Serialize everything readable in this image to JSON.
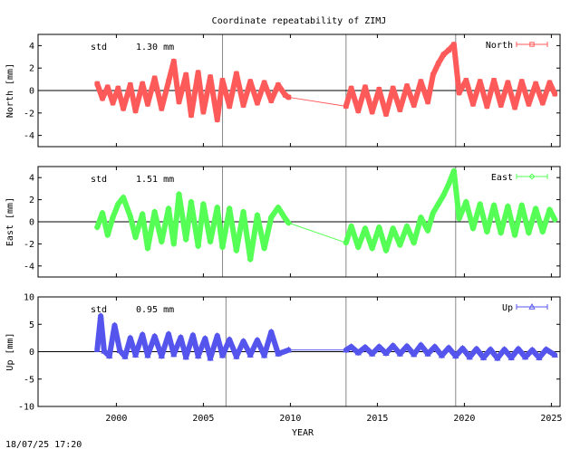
{
  "title": "Coordinate repeatability of ZIMJ",
  "xlabel": "YEAR",
  "timestamp": "18/07/25 17:20",
  "x_ticks": [
    "2000",
    "2005",
    "2010",
    "2015",
    "2020",
    "2025"
  ],
  "chart_data": [
    {
      "type": "line",
      "name": "north",
      "legend": "North",
      "ylabel": "North [mm]",
      "std_label": "std",
      "std_value": "1.30 mm",
      "ylim": [
        -5,
        5
      ],
      "y_ticks": [
        "4",
        "2",
        "0",
        "-2",
        "-4"
      ],
      "xlim": [
        1995.5,
        2025.5
      ],
      "color": "#ff5a5a",
      "marker": "square",
      "vertical_lines": [
        2006.1,
        2013.2,
        2019.5
      ],
      "gaps": [
        [
          2009.9,
          2013.2
        ]
      ],
      "segments": [
        {
          "x": 1998.9,
          "y": 0.6
        },
        {
          "x": 1999.2,
          "y": -0.7
        },
        {
          "x": 1999.5,
          "y": 0.3
        },
        {
          "x": 1999.8,
          "y": -1.1
        },
        {
          "x": 2000.1,
          "y": 0.2
        },
        {
          "x": 2000.4,
          "y": -1.6
        },
        {
          "x": 2000.8,
          "y": 0.5
        },
        {
          "x": 2001.1,
          "y": -1.8
        },
        {
          "x": 2001.5,
          "y": 0.6
        },
        {
          "x": 2001.8,
          "y": -1.2
        },
        {
          "x": 2002.2,
          "y": 1.1
        },
        {
          "x": 2002.6,
          "y": -1.6
        },
        {
          "x": 2003.0,
          "y": 0.8
        },
        {
          "x": 2003.3,
          "y": 2.6
        },
        {
          "x": 2003.6,
          "y": -1.0
        },
        {
          "x": 2004.0,
          "y": 1.4
        },
        {
          "x": 2004.3,
          "y": -2.2
        },
        {
          "x": 2004.7,
          "y": 1.6
        },
        {
          "x": 2005.0,
          "y": -1.9
        },
        {
          "x": 2005.4,
          "y": 1.2
        },
        {
          "x": 2005.8,
          "y": -2.6
        },
        {
          "x": 2006.1,
          "y": 0.9
        },
        {
          "x": 2006.5,
          "y": -1.4
        },
        {
          "x": 2006.9,
          "y": 1.5
        },
        {
          "x": 2007.3,
          "y": -1.3
        },
        {
          "x": 2007.7,
          "y": 0.8
        },
        {
          "x": 2008.1,
          "y": -1.1
        },
        {
          "x": 2008.5,
          "y": 0.7
        },
        {
          "x": 2008.9,
          "y": -0.9
        },
        {
          "x": 2009.3,
          "y": 0.5
        },
        {
          "x": 2009.7,
          "y": -0.4
        },
        {
          "x": 2009.9,
          "y": -0.6
        },
        {
          "x": 2013.2,
          "y": -1.4
        },
        {
          "x": 2013.5,
          "y": 0.2
        },
        {
          "x": 2013.9,
          "y": -1.8
        },
        {
          "x": 2014.3,
          "y": 0.3
        },
        {
          "x": 2014.7,
          "y": -1.9
        },
        {
          "x": 2015.1,
          "y": 0.1
        },
        {
          "x": 2015.5,
          "y": -2.1
        },
        {
          "x": 2015.9,
          "y": 0.2
        },
        {
          "x": 2016.3,
          "y": -1.7
        },
        {
          "x": 2016.7,
          "y": 0.4
        },
        {
          "x": 2017.1,
          "y": -1.3
        },
        {
          "x": 2017.5,
          "y": 0.8
        },
        {
          "x": 2017.9,
          "y": -1.0
        },
        {
          "x": 2018.2,
          "y": 1.4
        },
        {
          "x": 2018.5,
          "y": 2.4
        },
        {
          "x": 2018.8,
          "y": 3.2
        },
        {
          "x": 2019.1,
          "y": 3.6
        },
        {
          "x": 2019.4,
          "y": 4.1
        },
        {
          "x": 2019.7,
          "y": -0.2
        },
        {
          "x": 2020.1,
          "y": 0.9
        },
        {
          "x": 2020.5,
          "y": -1.2
        },
        {
          "x": 2020.9,
          "y": 0.8
        },
        {
          "x": 2021.3,
          "y": -1.4
        },
        {
          "x": 2021.7,
          "y": 0.9
        },
        {
          "x": 2022.1,
          "y": -1.3
        },
        {
          "x": 2022.5,
          "y": 0.7
        },
        {
          "x": 2022.9,
          "y": -1.5
        },
        {
          "x": 2023.3,
          "y": 0.8
        },
        {
          "x": 2023.7,
          "y": -1.2
        },
        {
          "x": 2024.1,
          "y": 0.6
        },
        {
          "x": 2024.5,
          "y": -1.1
        },
        {
          "x": 2024.9,
          "y": 0.7
        },
        {
          "x": 2025.2,
          "y": -0.3
        }
      ]
    },
    {
      "type": "line",
      "name": "east",
      "legend": "East",
      "ylabel": "East [mm]",
      "std_label": "std",
      "std_value": "1.51 mm",
      "ylim": [
        -5,
        5
      ],
      "y_ticks": [
        "4",
        "2",
        "0",
        "-2",
        "-4"
      ],
      "xlim": [
        1995.5,
        2025.5
      ],
      "color": "#55ff55",
      "marker": "diamond",
      "vertical_lines": [
        2006.1,
        2013.2,
        2019.5
      ],
      "gaps": [
        [
          2009.9,
          2013.2
        ]
      ],
      "segments": [
        {
          "x": 1998.9,
          "y": -0.5
        },
        {
          "x": 1999.2,
          "y": 0.8
        },
        {
          "x": 1999.5,
          "y": -1.2
        },
        {
          "x": 1999.8,
          "y": 0.4
        },
        {
          "x": 2000.1,
          "y": 1.6
        },
        {
          "x": 2000.4,
          "y": 2.2
        },
        {
          "x": 2000.8,
          "y": 0.5
        },
        {
          "x": 2001.1,
          "y": -1.4
        },
        {
          "x": 2001.5,
          "y": 0.7
        },
        {
          "x": 2001.8,
          "y": -2.4
        },
        {
          "x": 2002.2,
          "y": 0.9
        },
        {
          "x": 2002.6,
          "y": -1.8
        },
        {
          "x": 2003.0,
          "y": 1.2
        },
        {
          "x": 2003.3,
          "y": -2.0
        },
        {
          "x": 2003.6,
          "y": 2.5
        },
        {
          "x": 2004.0,
          "y": -1.6
        },
        {
          "x": 2004.3,
          "y": 1.8
        },
        {
          "x": 2004.7,
          "y": -2.2
        },
        {
          "x": 2005.0,
          "y": 1.6
        },
        {
          "x": 2005.4,
          "y": -1.8
        },
        {
          "x": 2005.8,
          "y": 1.3
        },
        {
          "x": 2006.1,
          "y": -2.3
        },
        {
          "x": 2006.5,
          "y": 1.2
        },
        {
          "x": 2006.9,
          "y": -2.6
        },
        {
          "x": 2007.3,
          "y": 0.9
        },
        {
          "x": 2007.7,
          "y": -3.4
        },
        {
          "x": 2008.1,
          "y": 0.6
        },
        {
          "x": 2008.5,
          "y": -2.4
        },
        {
          "x": 2008.9,
          "y": 0.4
        },
        {
          "x": 2009.3,
          "y": 1.3
        },
        {
          "x": 2009.7,
          "y": 0.3
        },
        {
          "x": 2009.9,
          "y": -0.1
        },
        {
          "x": 2013.2,
          "y": -1.9
        },
        {
          "x": 2013.5,
          "y": -0.4
        },
        {
          "x": 2013.9,
          "y": -2.3
        },
        {
          "x": 2014.3,
          "y": -0.6
        },
        {
          "x": 2014.7,
          "y": -2.4
        },
        {
          "x": 2015.1,
          "y": -0.5
        },
        {
          "x": 2015.5,
          "y": -2.6
        },
        {
          "x": 2015.9,
          "y": -0.6
        },
        {
          "x": 2016.3,
          "y": -2.1
        },
        {
          "x": 2016.7,
          "y": -0.4
        },
        {
          "x": 2017.1,
          "y": -1.9
        },
        {
          "x": 2017.5,
          "y": 0.4
        },
        {
          "x": 2017.9,
          "y": -0.8
        },
        {
          "x": 2018.2,
          "y": 0.8
        },
        {
          "x": 2018.5,
          "y": 1.6
        },
        {
          "x": 2018.8,
          "y": 2.4
        },
        {
          "x": 2019.1,
          "y": 3.4
        },
        {
          "x": 2019.4,
          "y": 4.6
        },
        {
          "x": 2019.7,
          "y": 0.3
        },
        {
          "x": 2020.1,
          "y": 1.8
        },
        {
          "x": 2020.5,
          "y": -0.6
        },
        {
          "x": 2020.9,
          "y": 1.6
        },
        {
          "x": 2021.3,
          "y": -0.9
        },
        {
          "x": 2021.7,
          "y": 1.5
        },
        {
          "x": 2022.1,
          "y": -1.0
        },
        {
          "x": 2022.5,
          "y": 1.4
        },
        {
          "x": 2022.9,
          "y": -1.2
        },
        {
          "x": 2023.3,
          "y": 1.5
        },
        {
          "x": 2023.7,
          "y": -1.0
        },
        {
          "x": 2024.1,
          "y": 1.2
        },
        {
          "x": 2024.5,
          "y": -0.9
        },
        {
          "x": 2024.9,
          "y": 1.1
        },
        {
          "x": 2025.2,
          "y": 0.2
        }
      ]
    },
    {
      "type": "line",
      "name": "up",
      "legend": "Up",
      "ylabel": "Up [mm]",
      "std_label": "std",
      "std_value": "0.95 mm",
      "ylim": [
        -10,
        10
      ],
      "y_ticks": [
        "10",
        "5",
        "0",
        "-5",
        "-10"
      ],
      "xlim": [
        1995.5,
        2025.5
      ],
      "color": "#5555ee",
      "marker": "triangle",
      "vertical_lines": [
        2006.3,
        2013.2,
        2019.5
      ],
      "gaps": [
        [
          2009.9,
          2013.2
        ]
      ],
      "segments": [
        {
          "x": 1998.9,
          "y": 0.4
        },
        {
          "x": 1999.1,
          "y": 6.5
        },
        {
          "x": 1999.3,
          "y": 0.1
        },
        {
          "x": 1999.6,
          "y": -0.8
        },
        {
          "x": 1999.9,
          "y": 4.8
        },
        {
          "x": 2000.2,
          "y": 0.2
        },
        {
          "x": 2000.5,
          "y": -0.9
        },
        {
          "x": 2000.8,
          "y": 2.5
        },
        {
          "x": 2001.1,
          "y": -0.6
        },
        {
          "x": 2001.5,
          "y": 3.1
        },
        {
          "x": 2001.8,
          "y": -0.7
        },
        {
          "x": 2002.2,
          "y": 2.8
        },
        {
          "x": 2002.6,
          "y": -0.8
        },
        {
          "x": 2003.0,
          "y": 3.2
        },
        {
          "x": 2003.3,
          "y": -0.5
        },
        {
          "x": 2003.7,
          "y": 2.6
        },
        {
          "x": 2004.0,
          "y": -1.0
        },
        {
          "x": 2004.4,
          "y": 3.0
        },
        {
          "x": 2004.7,
          "y": -0.8
        },
        {
          "x": 2005.1,
          "y": 2.4
        },
        {
          "x": 2005.4,
          "y": -1.2
        },
        {
          "x": 2005.8,
          "y": 2.9
        },
        {
          "x": 2006.1,
          "y": -0.7
        },
        {
          "x": 2006.5,
          "y": 2.2
        },
        {
          "x": 2006.9,
          "y": -0.9
        },
        {
          "x": 2007.3,
          "y": 1.9
        },
        {
          "x": 2007.7,
          "y": -0.6
        },
        {
          "x": 2008.1,
          "y": 2.1
        },
        {
          "x": 2008.5,
          "y": -0.7
        },
        {
          "x": 2008.9,
          "y": 3.6
        },
        {
          "x": 2009.3,
          "y": -0.4
        },
        {
          "x": 2009.9,
          "y": 0.3
        },
        {
          "x": 2013.2,
          "y": 0.3
        },
        {
          "x": 2013.5,
          "y": 0.9
        },
        {
          "x": 2013.9,
          "y": -0.2
        },
        {
          "x": 2014.3,
          "y": 0.8
        },
        {
          "x": 2014.7,
          "y": -0.4
        },
        {
          "x": 2015.1,
          "y": 0.9
        },
        {
          "x": 2015.5,
          "y": -0.3
        },
        {
          "x": 2015.9,
          "y": 1.1
        },
        {
          "x": 2016.3,
          "y": -0.4
        },
        {
          "x": 2016.7,
          "y": 1.0
        },
        {
          "x": 2017.1,
          "y": -0.5
        },
        {
          "x": 2017.5,
          "y": 1.2
        },
        {
          "x": 2017.9,
          "y": -0.4
        },
        {
          "x": 2018.3,
          "y": 0.9
        },
        {
          "x": 2018.7,
          "y": -0.7
        },
        {
          "x": 2019.1,
          "y": 0.7
        },
        {
          "x": 2019.5,
          "y": -0.8
        },
        {
          "x": 2019.9,
          "y": 0.6
        },
        {
          "x": 2020.3,
          "y": -1.0
        },
        {
          "x": 2020.7,
          "y": 0.5
        },
        {
          "x": 2021.1,
          "y": -1.1
        },
        {
          "x": 2021.5,
          "y": 0.4
        },
        {
          "x": 2021.9,
          "y": -1.2
        },
        {
          "x": 2022.3,
          "y": 0.4
        },
        {
          "x": 2022.7,
          "y": -1.1
        },
        {
          "x": 2023.1,
          "y": 0.5
        },
        {
          "x": 2023.5,
          "y": -1.0
        },
        {
          "x": 2023.9,
          "y": 0.3
        },
        {
          "x": 2024.3,
          "y": -1.1
        },
        {
          "x": 2024.7,
          "y": 0.4
        },
        {
          "x": 2025.2,
          "y": -0.6
        }
      ]
    }
  ]
}
